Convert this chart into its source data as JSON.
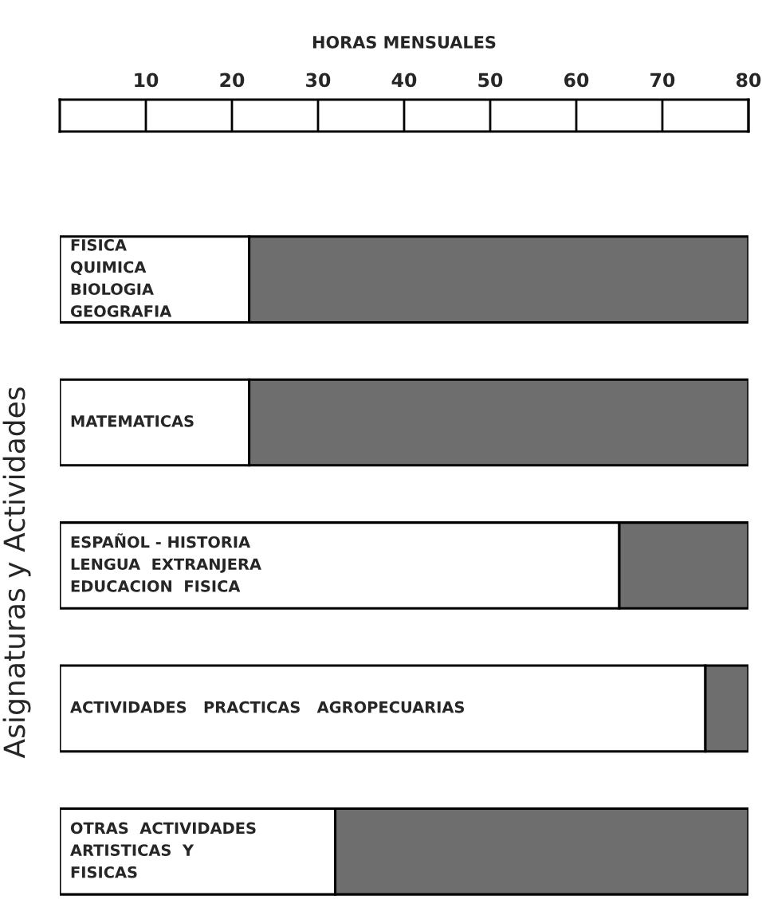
{
  "chart_data": {
    "type": "bar",
    "orientation": "horizontal",
    "stacked": true,
    "xlabel": "HORAS MENSUALES",
    "ylabel": "Asignaturas y Actividades",
    "categories": [
      "FISICA\nQUIMICA\nBIOLOGIA\nGEOGRAFIA",
      "MATEMATICAS",
      "ESPAÑOL - HISTORIA\nLENGUA  EXTRANJERA\nEDUCACION  FISICA",
      "ACTIVIDADES   PRACTICAS   AGROPECUARIAS",
      "OTRAS  ACTIVIDADES\nARTISTICAS  Y\nFISICAS"
    ],
    "series": [
      {
        "color": "#ffffff",
        "values": [
          22,
          22,
          65,
          75,
          32
        ]
      },
      {
        "color": "#6e6e6e",
        "values": [
          58,
          58,
          15,
          5,
          48
        ]
      }
    ],
    "xlim": [
      0,
      80
    ],
    "xticks": [
      10,
      20,
      30,
      40,
      50,
      60,
      70,
      80
    ],
    "tick_labels": "x"
  }
}
